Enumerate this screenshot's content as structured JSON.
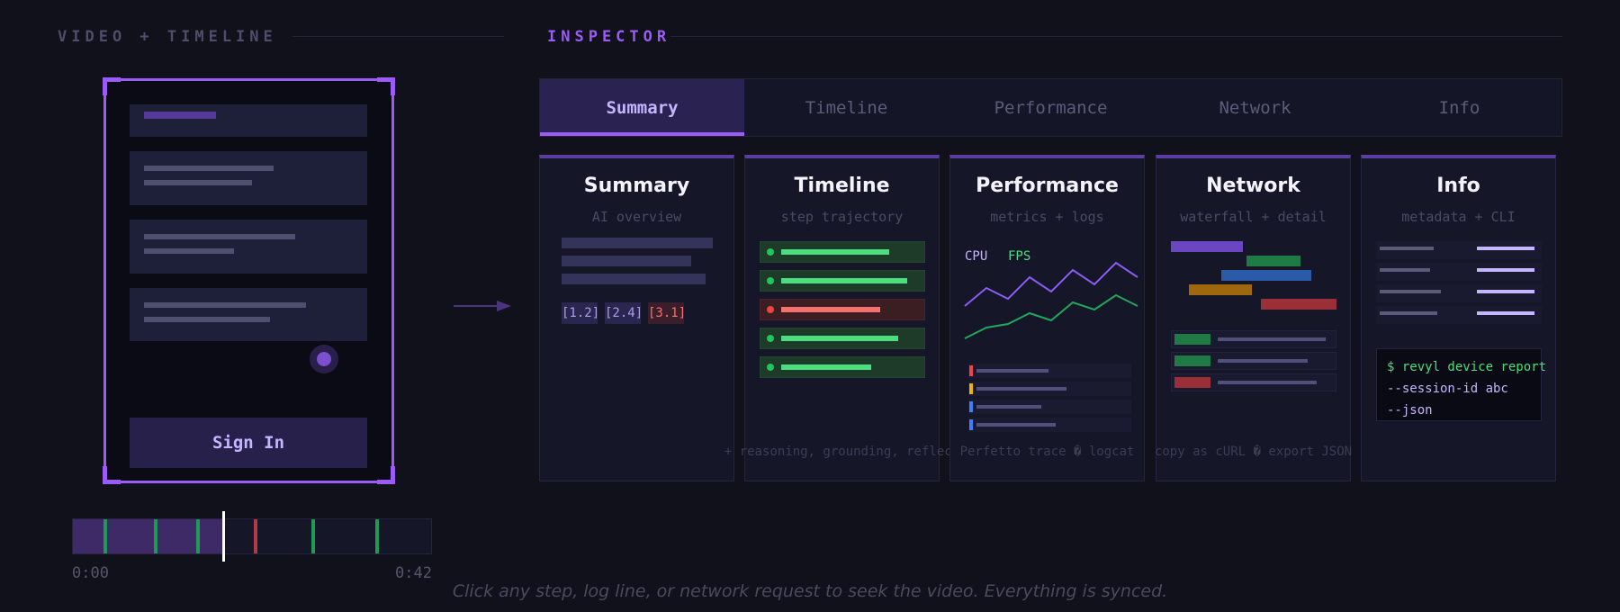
{
  "left_section": {
    "label": "VIDEO + TIMELINE"
  },
  "right_section": {
    "label": "INSPECTOR"
  },
  "phone": {
    "sign_in_label": "Sign In"
  },
  "timeline": {
    "start": "0:00",
    "end": "0:42",
    "progress_fraction": 0.42,
    "markers": [
      {
        "pos": 0.085,
        "status": "success"
      },
      {
        "pos": 0.225,
        "status": "success"
      },
      {
        "pos": 0.345,
        "status": "success"
      },
      {
        "pos": 0.505,
        "status": "error"
      },
      {
        "pos": 0.665,
        "status": "success"
      },
      {
        "pos": 0.845,
        "status": "success"
      }
    ]
  },
  "tabs": [
    {
      "label": "Summary",
      "active": true
    },
    {
      "label": "Timeline"
    },
    {
      "label": "Performance"
    },
    {
      "label": "Network"
    },
    {
      "label": "Info"
    }
  ],
  "cards": [
    {
      "title": "Summary",
      "subtitle": "AI overview",
      "tags": [
        "[1.2]",
        "[2.4]",
        "[3.1]"
      ]
    },
    {
      "title": "Timeline",
      "subtitle": "step trajectory",
      "note": "+ reasoning, grounding, reflect"
    },
    {
      "title": "Performance",
      "subtitle": "metrics + logs",
      "legend": [
        "CPU",
        "FPS"
      ],
      "note": "Perfetto trace � logcat"
    },
    {
      "title": "Network",
      "subtitle": "waterfall + detail",
      "note": "copy as cURL � export JSON"
    },
    {
      "title": "Info",
      "subtitle": "metadata + CLI",
      "cli": [
        "$ revyl device report",
        "--session-id abc",
        "--json"
      ]
    }
  ],
  "footer": "Click any step, log line, or network request to seek the video. Everything is synced.",
  "colors": {
    "accent": "#9b5cf6",
    "success": "#4ade80",
    "error": "#f87171",
    "background": "#10111a"
  }
}
